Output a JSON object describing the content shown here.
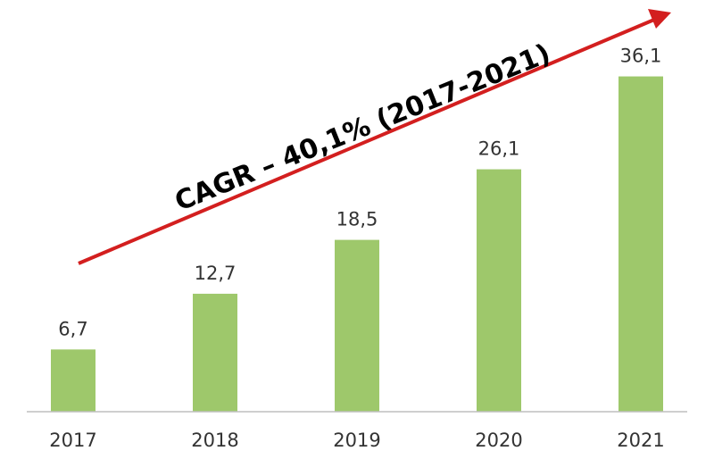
{
  "chart_data": {
    "type": "bar",
    "categories": [
      "2017",
      "2018",
      "2019",
      "2020",
      "2021"
    ],
    "values": [
      6.7,
      12.7,
      18.5,
      26.1,
      36.1
    ],
    "value_labels": [
      "6,7",
      "12,7",
      "18,5",
      "26,1",
      "36,1"
    ],
    "ylim": [
      0,
      40
    ],
    "grid": false,
    "annotation": "CAGR – 40,1% (2017-2021)",
    "colors": {
      "bar": "#9ec86b",
      "arrow": "#d31f1f",
      "text": "#333333"
    }
  }
}
